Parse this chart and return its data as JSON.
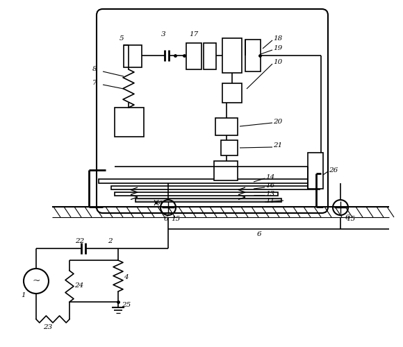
{
  "bg_color": "#ffffff",
  "fig_width": 5.8,
  "fig_height": 5.0,
  "dpi": 100
}
